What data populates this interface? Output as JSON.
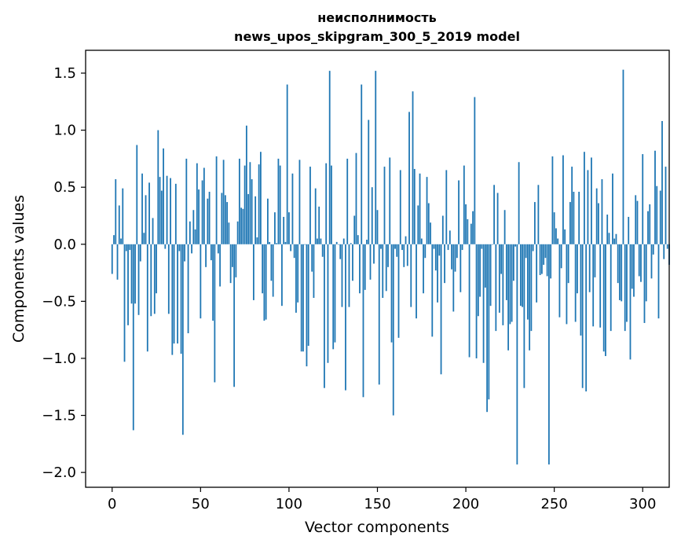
{
  "chart_data": {
    "type": "bar",
    "title": "неисполнимость",
    "subtitle": "news_upos_skipgram_300_5_2019 model",
    "xlabel": "Vector components",
    "ylabel": "Components values",
    "xlim": [
      -15,
      315
    ],
    "ylim": [
      -2.13,
      1.7
    ],
    "xticks": [
      0,
      50,
      100,
      150,
      200,
      250,
      300
    ],
    "yticks": [
      1.5,
      1.0,
      0.5,
      0.0,
      -0.5,
      -1.0,
      -1.5,
      -2.0
    ],
    "xtick_labels": [
      "0",
      "50",
      "100",
      "150",
      "200",
      "250",
      "300"
    ],
    "ytick_labels": [
      "1.5",
      "1.0",
      "0.5",
      "0.0",
      "−0.5",
      "−1.0",
      "−1.5",
      "−2.0"
    ],
    "bar_color": "#1f77b4",
    "grid": false,
    "values": [
      -0.26,
      0.08,
      0.57,
      -0.31,
      0.34,
      0.05,
      0.49,
      -1.03,
      -0.06,
      -0.71,
      -0.05,
      -0.52,
      -1.63,
      -0.52,
      0.87,
      -0.62,
      -0.15,
      0.62,
      0.1,
      0.43,
      -0.94,
      0.54,
      -0.63,
      0.23,
      -0.61,
      -0.43,
      1.0,
      0.59,
      0.47,
      0.84,
      -0.04,
      0.6,
      -0.61,
      0.58,
      -0.97,
      -0.87,
      0.53,
      -0.87,
      -0.06,
      -0.96,
      -1.67,
      -0.15,
      0.75,
      -0.78,
      0.2,
      -0.08,
      0.3,
      0.13,
      0.71,
      0.48,
      -0.65,
      0.56,
      0.67,
      -0.2,
      0.4,
      0.46,
      -0.14,
      -0.67,
      -1.21,
      0.77,
      -0.08,
      -0.37,
      0.45,
      0.74,
      0.43,
      0.37,
      0.19,
      -0.34,
      -0.2,
      -1.25,
      -0.29,
      0.2,
      0.75,
      0.32,
      0.31,
      0.69,
      1.04,
      0.44,
      0.72,
      0.57,
      -0.49,
      0.42,
      0.06,
      0.7,
      0.81,
      -0.43,
      -0.67,
      -0.66,
      0.4,
      0.02,
      -0.32,
      -0.46,
      0.28,
      0.01,
      0.75,
      0.69,
      -0.54,
      0.24,
      0.02,
      1.4,
      0.28,
      -0.06,
      0.62,
      -0.12,
      -0.6,
      -0.51,
      0.74,
      -0.94,
      -0.94,
      0.0,
      -1.07,
      -0.89,
      0.68,
      -0.24,
      -0.47,
      0.49,
      0.05,
      0.33,
      0.05,
      -0.11,
      -1.26,
      0.71,
      -1.04,
      1.52,
      0.69,
      -0.92,
      -0.86,
      0.02,
      0.0,
      -0.13,
      -0.55,
      0.05,
      -1.28,
      0.75,
      -0.55,
      0.01,
      -0.32,
      0.25,
      0.8,
      0.08,
      -0.43,
      1.4,
      -1.34,
      -0.4,
      0.04,
      1.09,
      -0.31,
      0.5,
      -0.17,
      1.52,
      0.3,
      -1.23,
      -0.04,
      -0.47,
      0.68,
      -0.41,
      -0.2,
      0.76,
      -0.86,
      -1.5,
      -0.04,
      -0.11,
      -0.82,
      0.65,
      -0.05,
      -0.2,
      0.07,
      -0.19,
      1.16,
      -0.55,
      1.34,
      0.66,
      -0.65,
      0.34,
      0.62,
      0.05,
      -0.43,
      -0.12,
      0.59,
      0.36,
      0.19,
      -0.81,
      -0.04,
      -0.23,
      -0.51,
      -0.1,
      -1.14,
      0.25,
      -0.34,
      0.65,
      -0.05,
      0.12,
      -0.22,
      -0.59,
      -0.24,
      -0.12,
      0.56,
      -0.42,
      -0.05,
      0.69,
      0.35,
      0.22,
      -0.99,
      0.18,
      0.29,
      1.29,
      -1.0,
      -0.63,
      -0.46,
      -0.04,
      -1.04,
      -0.38,
      -1.47,
      -1.36,
      -0.54,
      0.0,
      0.52,
      -0.76,
      0.45,
      -0.6,
      -0.26,
      -0.71,
      0.3,
      -0.49,
      -0.93,
      -0.7,
      -0.68,
      -0.32,
      -0.02,
      -1.93,
      0.72,
      -0.54,
      -0.55,
      -1.26,
      -0.12,
      -0.66,
      -0.93,
      -0.76,
      -0.06,
      0.37,
      -0.51,
      0.52,
      -0.27,
      -0.26,
      -0.18,
      -0.12,
      -0.28,
      -1.93,
      -0.3,
      0.77,
      0.28,
      0.14,
      0.05,
      -0.64,
      -0.21,
      0.78,
      0.13,
      -0.7,
      -0.34,
      0.37,
      0.68,
      0.46,
      -0.68,
      -0.43,
      0.46,
      -0.8,
      -1.26,
      0.81,
      -1.29,
      0.65,
      -0.42,
      0.76,
      -0.72,
      -0.29,
      0.49,
      0.36,
      -0.73,
      0.57,
      -0.94,
      -0.98,
      0.26,
      0.1,
      -0.76,
      0.62,
      0.05,
      0.09,
      -0.34,
      -0.49,
      -0.5,
      1.53,
      -0.76,
      -0.68,
      0.24,
      -1.01,
      -0.39,
      -0.46,
      0.43,
      0.38,
      -0.28,
      -0.33,
      0.79,
      -0.69,
      -0.5,
      0.29,
      0.35,
      -0.3,
      -0.09,
      0.82,
      0.51,
      -0.65,
      0.47,
      1.08,
      -0.13,
      0.68,
      -0.04,
      -0.18
    ]
  }
}
